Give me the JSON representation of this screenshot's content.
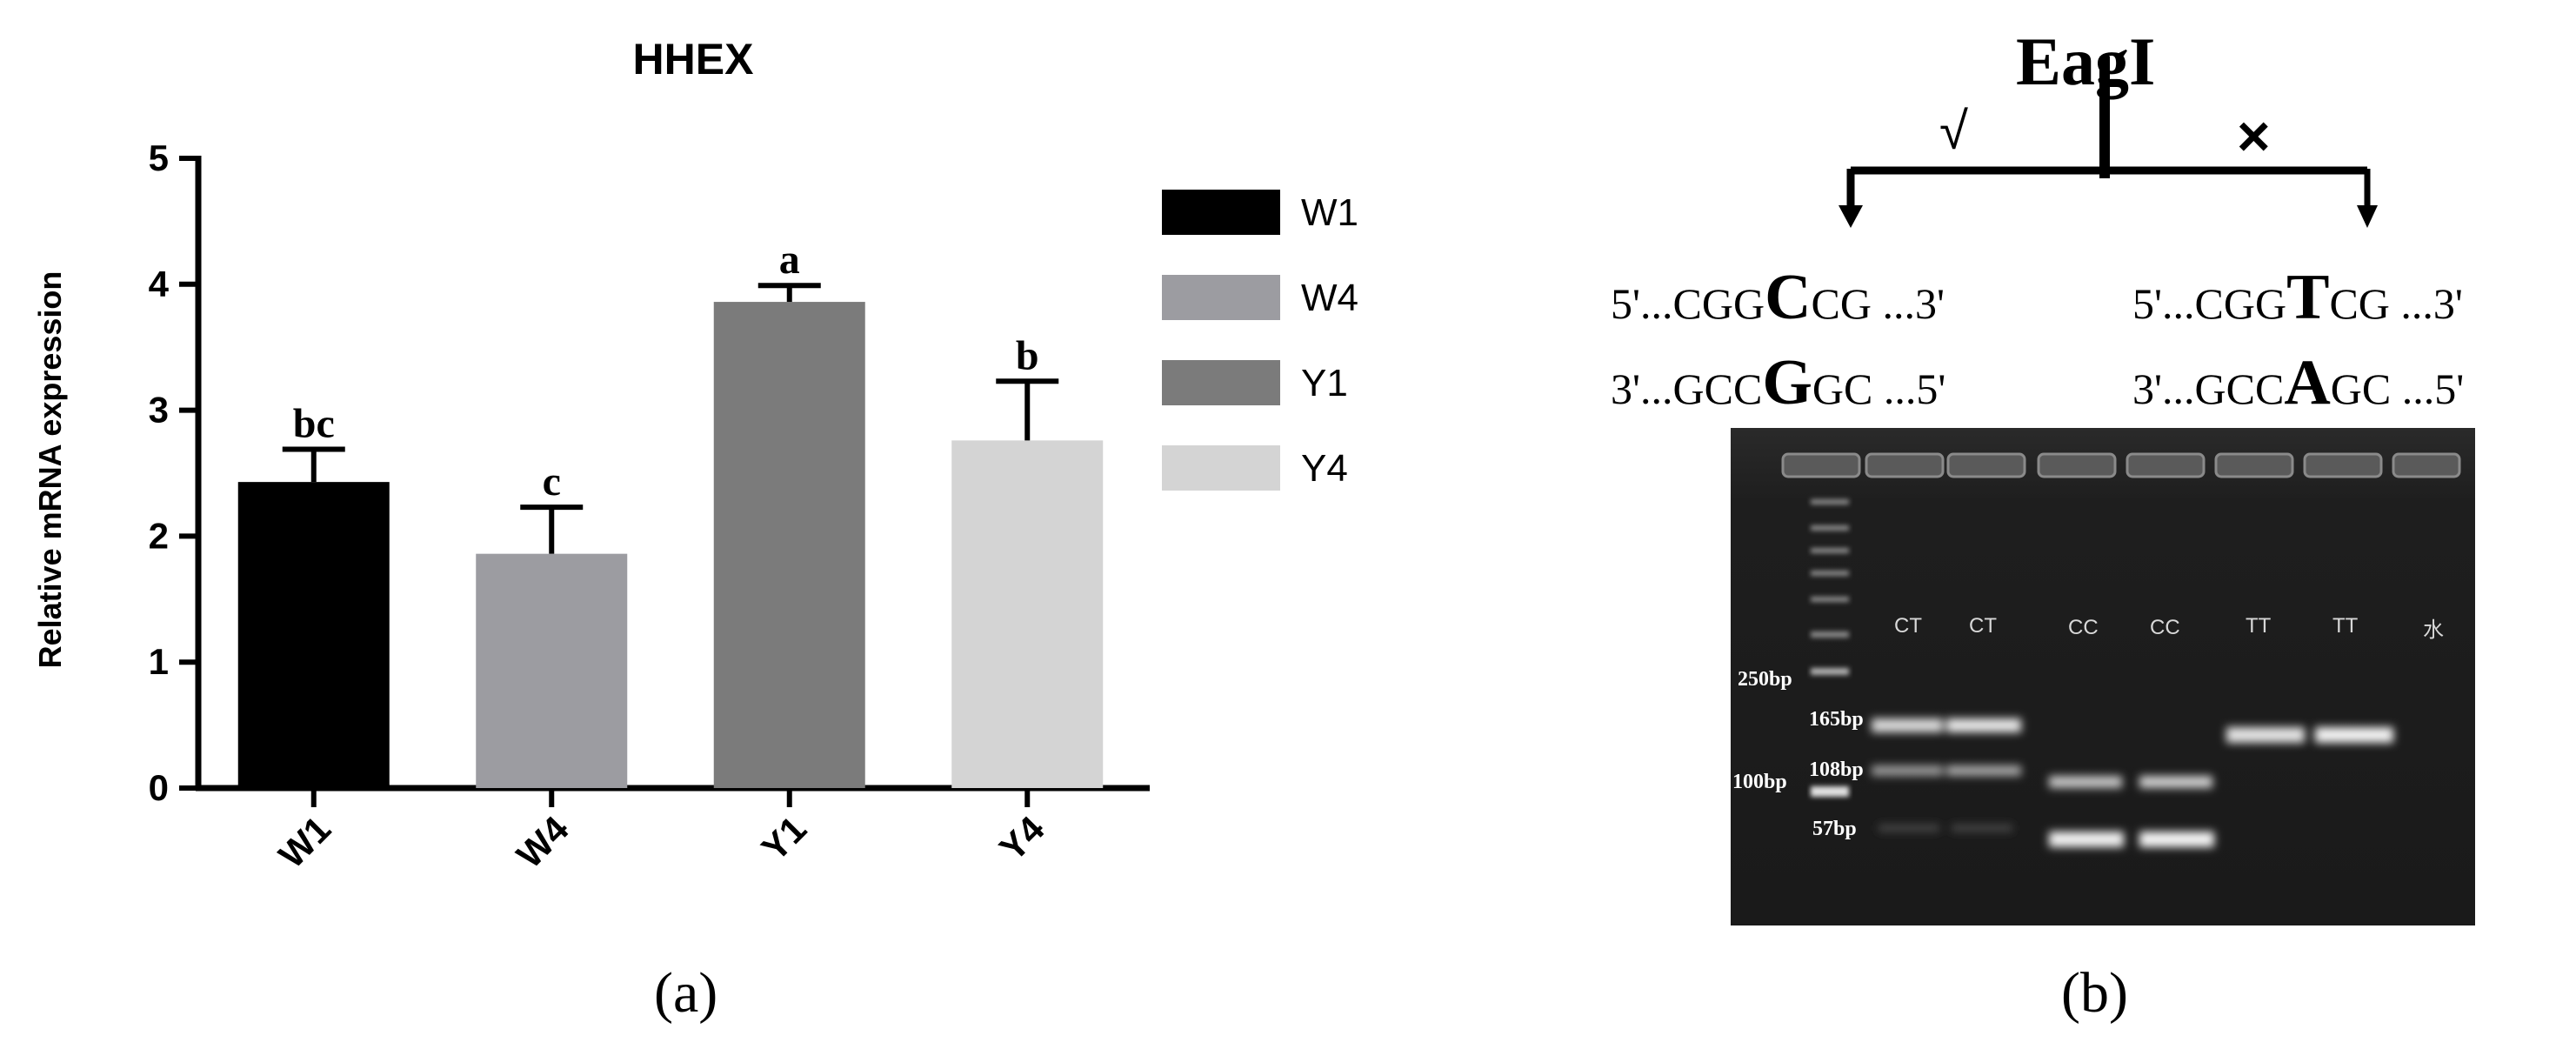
{
  "panel_a": {
    "caption": "(a)",
    "chart_data": {
      "type": "bar",
      "title": "HHEX",
      "xlabel": "",
      "ylabel": "Relative mRNA expression",
      "ylim": [
        0,
        5
      ],
      "yticks": [
        0,
        1,
        2,
        3,
        4,
        5
      ],
      "categories": [
        "W1",
        "W4",
        "Y1",
        "Y4"
      ],
      "values": [
        2.43,
        1.86,
        3.86,
        2.76
      ],
      "errors": [
        0.26,
        0.37,
        0.13,
        0.47
      ],
      "significance_labels": [
        "bc",
        "c",
        "a",
        "b"
      ],
      "colors": [
        "#000000",
        "#9c9ca1",
        "#7b7b7b",
        "#d4d4d4"
      ],
      "legend": [
        "W1",
        "W4",
        "Y1",
        "Y4"
      ],
      "legend_position": "right",
      "grid": false
    }
  },
  "panel_b": {
    "caption": "(b)",
    "enzyme": "EagI",
    "check_mark": "√",
    "cross_mark": "×",
    "seq_left": {
      "top": {
        "pre": "5'...CGG",
        "base": "C",
        "post": "CG ...3'"
      },
      "bottom": {
        "pre": "3'...GCC",
        "base": "G",
        "post": "GC ...5'"
      }
    },
    "seq_right": {
      "top": {
        "pre": "5'...CGG",
        "base": "T",
        "post": "CG ...3'"
      },
      "bottom": {
        "pre": "3'...GCC",
        "base": "A",
        "post": "GC ...5'"
      }
    },
    "gel": {
      "lane_labels": [
        "CT",
        "CT",
        "CC",
        "CC",
        "TT",
        "TT",
        "水"
      ],
      "size_labels": [
        "250bp",
        "165bp",
        "108bp",
        "100bp",
        "57bp"
      ]
    }
  }
}
